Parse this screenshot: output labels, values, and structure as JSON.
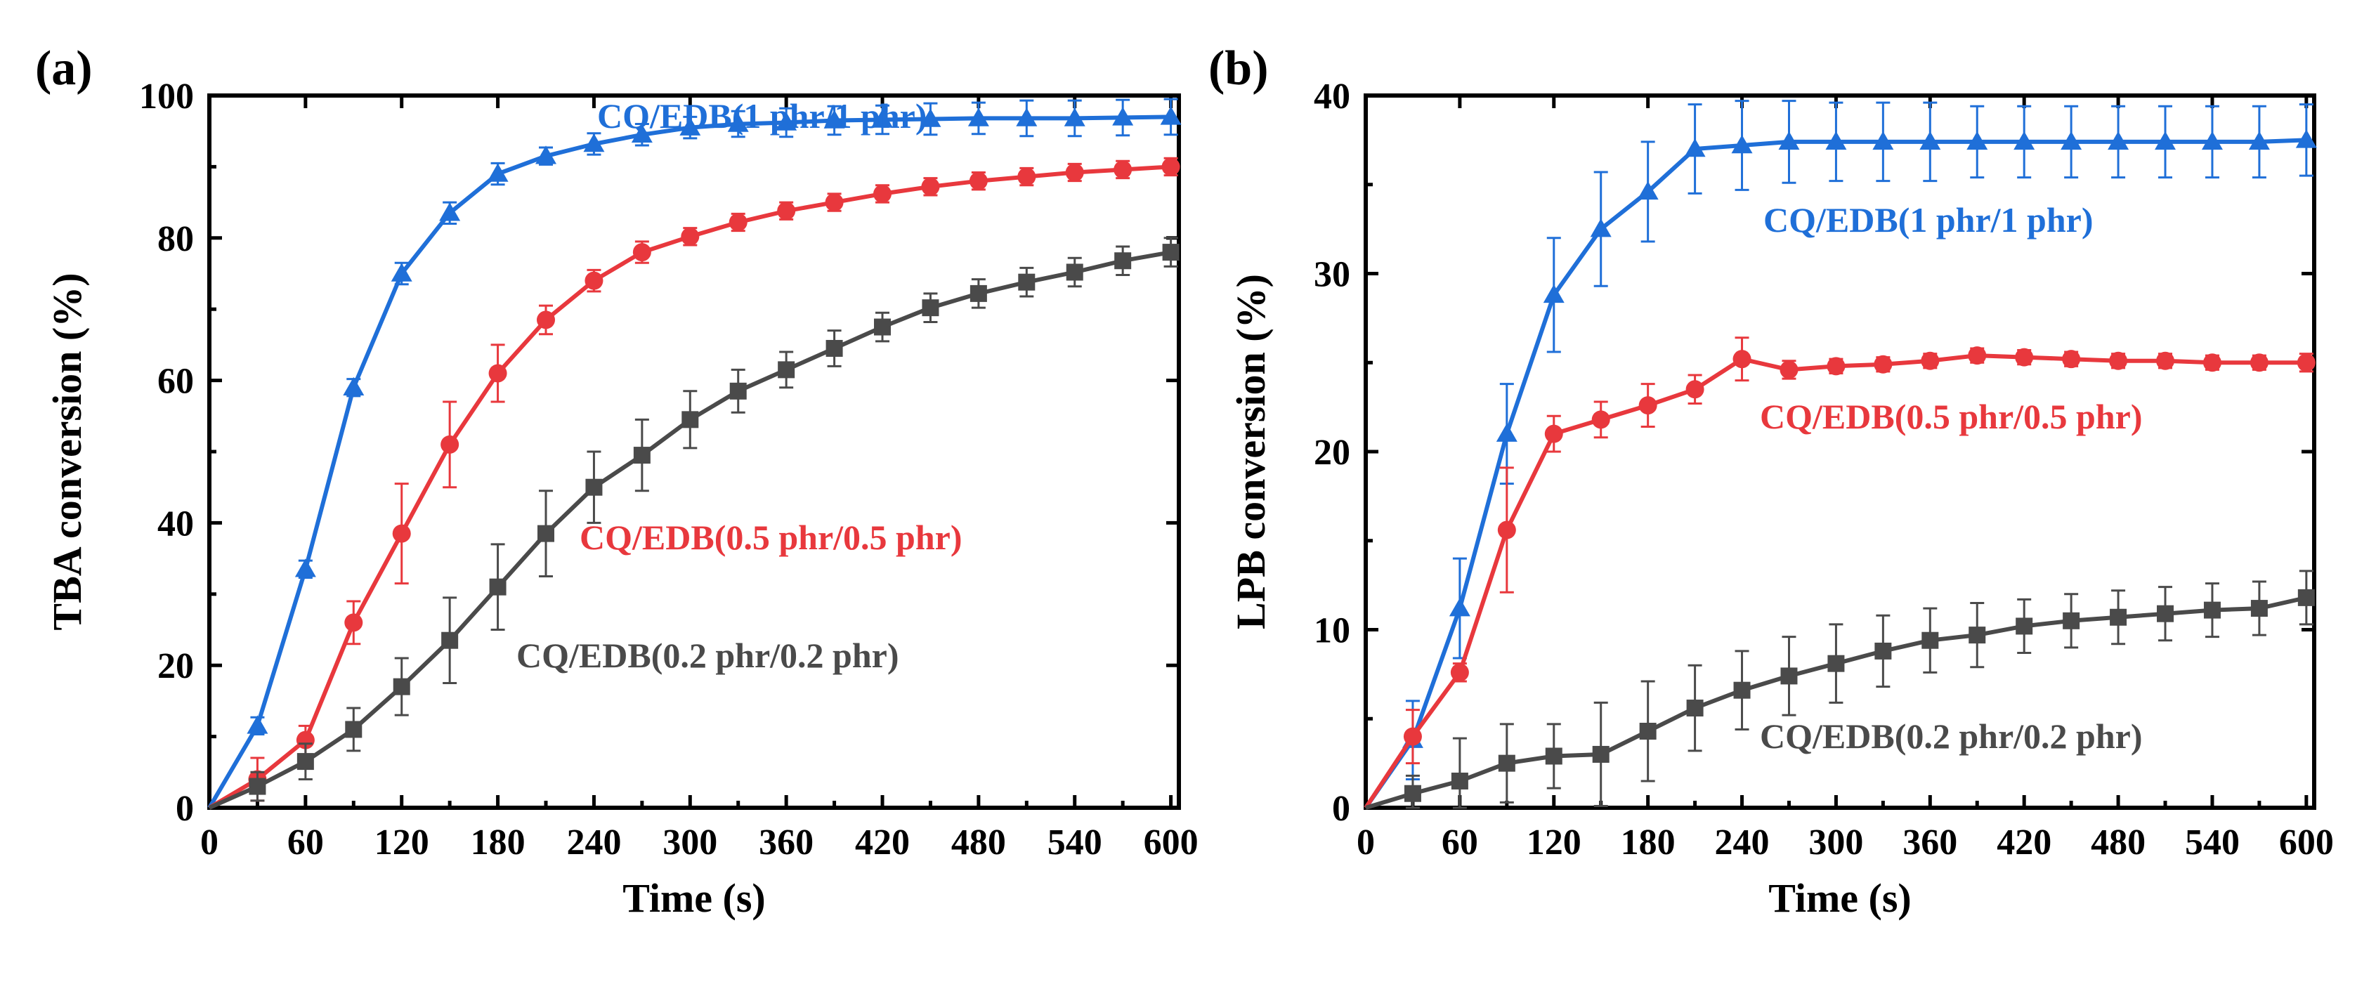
{
  "chart_data": [
    {
      "type": "line",
      "panel_label": "(a)",
      "xlabel": "Time (s)",
      "ylabel": "TBA conversion (%)",
      "xlim": [
        0,
        605
      ],
      "ylim": [
        0,
        100
      ],
      "xticks": [
        0,
        60,
        120,
        180,
        240,
        300,
        360,
        420,
        480,
        540,
        600
      ],
      "yticks": [
        0,
        20,
        40,
        60,
        80,
        100
      ],
      "x": [
        0,
        30,
        60,
        90,
        120,
        150,
        180,
        210,
        240,
        270,
        300,
        330,
        360,
        390,
        420,
        450,
        480,
        510,
        540,
        570,
        600
      ],
      "series": [
        {
          "name": "CQ/EDB(1 phr/1 phr)",
          "color": "#1f6fd8",
          "marker": "triangle",
          "values": [
            0,
            11.5,
            33.5,
            59,
            75,
            83.5,
            89,
            91.5,
            93.2,
            94.5,
            95.5,
            96,
            96.2,
            96.5,
            96.6,
            96.7,
            96.8,
            96.8,
            96.8,
            96.9,
            97
          ],
          "errors": [
            0,
            1.2,
            1.2,
            1.2,
            1.5,
            1.5,
            1.5,
            1.2,
            1.5,
            1.5,
            1.5,
            1.8,
            2,
            2,
            2,
            2.2,
            2.2,
            2.5,
            2.5,
            2.5,
            2.5
          ]
        },
        {
          "name": "CQ/EDB(0.5 phr/0.5 phr)",
          "color": "#e8383d",
          "marker": "circle",
          "values": [
            0,
            4,
            9.5,
            26,
            38.5,
            51,
            61,
            68.5,
            74,
            78,
            80.2,
            82.2,
            83.8,
            85,
            86.2,
            87.2,
            88,
            88.6,
            89.2,
            89.6,
            90
          ],
          "errors": [
            0,
            3,
            2,
            3,
            7,
            6,
            4,
            2,
            1.5,
            1.5,
            1.2,
            1.2,
            1.2,
            1.2,
            1.2,
            1.2,
            1.2,
            1.2,
            1.2,
            1.2,
            1.2
          ]
        },
        {
          "name": "CQ/EDB(0.2 phr/0.2 phr)",
          "color": "#4a4a4a",
          "marker": "square",
          "values": [
            0,
            3,
            6.5,
            11,
            17,
            23.5,
            31,
            38.5,
            45,
            49.5,
            54.5,
            58.5,
            61.5,
            64.5,
            67.5,
            70.2,
            72.2,
            73.8,
            75.2,
            76.8,
            78
          ],
          "errors": [
            0,
            2,
            2.5,
            3,
            4,
            6,
            6,
            6,
            5,
            5,
            4,
            3,
            2.5,
            2.5,
            2,
            2,
            2,
            2,
            2,
            2,
            2
          ]
        }
      ]
    },
    {
      "type": "line",
      "panel_label": "(b)",
      "xlabel": "Time (s)",
      "ylabel": "LPB conversion (%)",
      "xlim": [
        0,
        605
      ],
      "ylim": [
        0,
        40
      ],
      "xticks": [
        0,
        60,
        120,
        180,
        240,
        300,
        360,
        420,
        480,
        540,
        600
      ],
      "yticks": [
        0,
        10,
        20,
        30,
        40
      ],
      "x": [
        0,
        30,
        60,
        90,
        120,
        150,
        180,
        210,
        240,
        270,
        300,
        330,
        360,
        390,
        420,
        450,
        480,
        510,
        540,
        570,
        600
      ],
      "series": [
        {
          "name": "CQ/EDB(1 phr/1 phr)",
          "color": "#1f6fd8",
          "marker": "triangle",
          "values": [
            0,
            3.8,
            11.2,
            21,
            28.8,
            32.5,
            34.6,
            37,
            37.2,
            37.4,
            37.4,
            37.4,
            37.4,
            37.4,
            37.4,
            37.4,
            37.4,
            37.4,
            37.4,
            37.4,
            37.5
          ],
          "errors": [
            0,
            2.2,
            2.8,
            2.8,
            3.2,
            3.2,
            2.8,
            2.5,
            2.5,
            2.3,
            2.2,
            2.2,
            2.2,
            2,
            2,
            2,
            2,
            2,
            2,
            2,
            2
          ]
        },
        {
          "name": "CQ/EDB(0.5 phr/0.5 phr)",
          "color": "#e8383d",
          "marker": "circle",
          "values": [
            0,
            4,
            7.6,
            15.6,
            21,
            21.8,
            22.6,
            23.5,
            25.2,
            24.6,
            24.8,
            24.9,
            25.1,
            25.4,
            25.3,
            25.2,
            25.1,
            25.1,
            25,
            25,
            25
          ],
          "errors": [
            0,
            1.5,
            0.5,
            3.5,
            1,
            1,
            1.2,
            0.8,
            1.2,
            0.5,
            0.4,
            0.4,
            0.4,
            0.4,
            0.4,
            0.4,
            0.4,
            0.4,
            0.4,
            0.4,
            0.5
          ]
        },
        {
          "name": "CQ/EDB(0.2 phr/0.2 phr)",
          "color": "#4a4a4a",
          "marker": "square",
          "values": [
            0,
            0.8,
            1.5,
            2.5,
            2.9,
            3,
            4.3,
            5.6,
            6.6,
            7.4,
            8.1,
            8.8,
            9.4,
            9.7,
            10.2,
            10.5,
            10.7,
            10.9,
            11.1,
            11.2,
            11.8
          ],
          "errors": [
            0,
            1,
            2.4,
            2.2,
            1.8,
            2.9,
            2.8,
            2.4,
            2.2,
            2.2,
            2.2,
            2,
            1.8,
            1.8,
            1.5,
            1.5,
            1.5,
            1.5,
            1.5,
            1.5,
            1.5
          ]
        }
      ]
    }
  ]
}
